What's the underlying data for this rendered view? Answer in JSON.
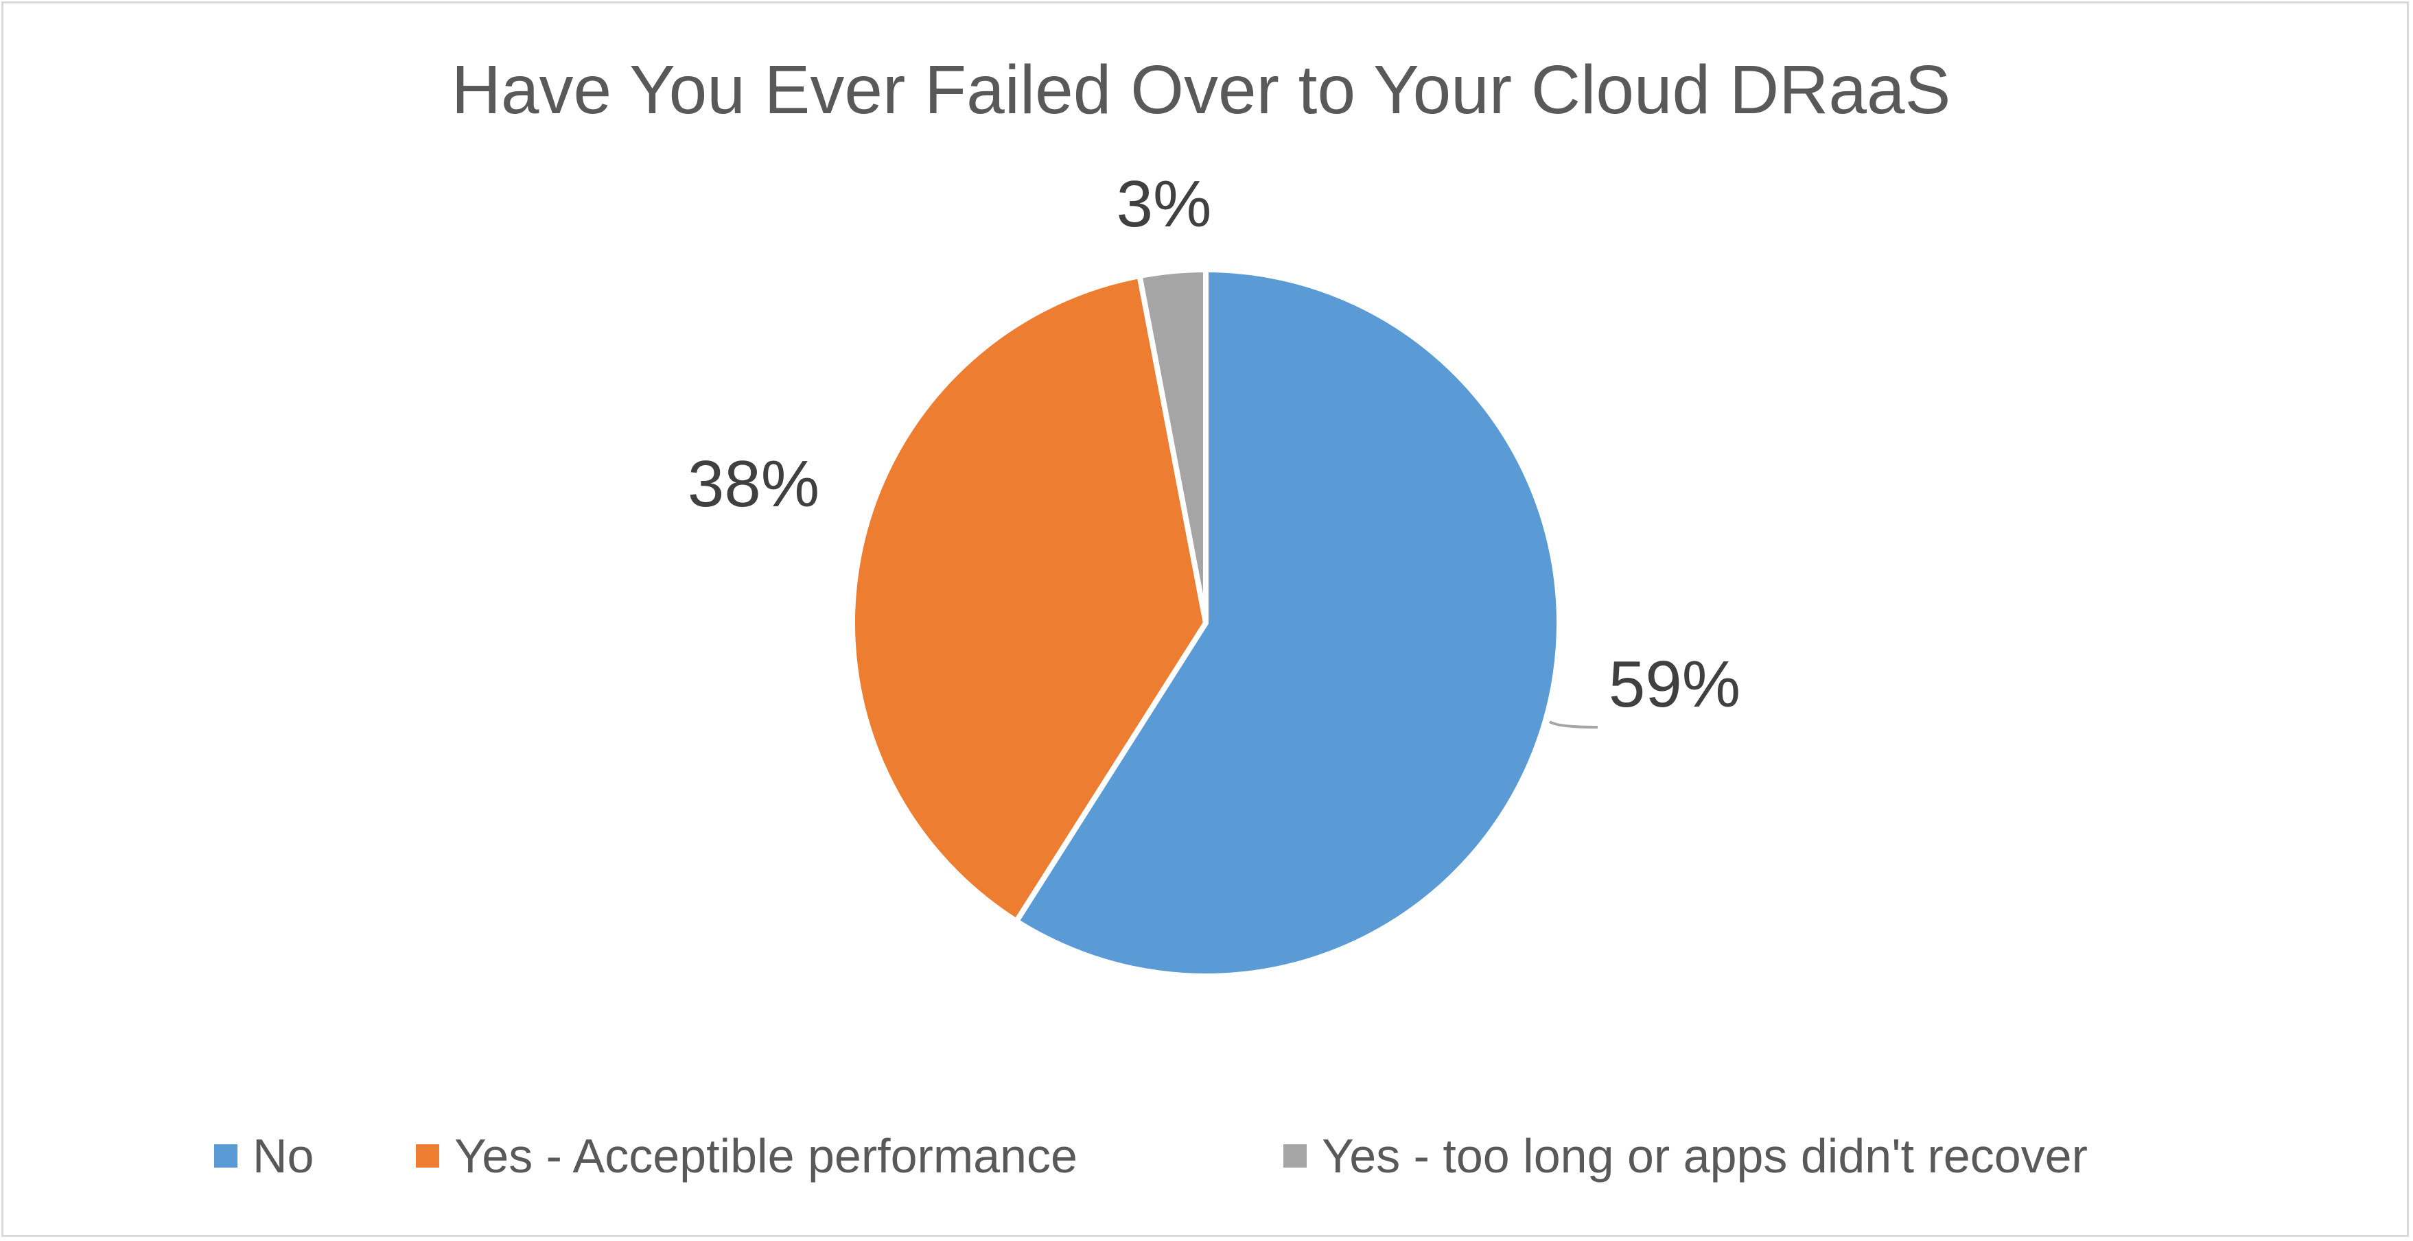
{
  "chart_data": {
    "type": "pie",
    "title": "Have You Ever Failed Over to Your Cloud DRaaS",
    "categories": [
      "No",
      "Yes - Acceptible performance",
      "Yes - too long or apps didn't recover"
    ],
    "values": [
      59,
      38,
      3
    ],
    "data_labels": [
      "59%",
      "38%",
      "3%"
    ],
    "colors": [
      "#5b9bd5",
      "#ed7d31",
      "#a5a5a5"
    ],
    "legend_position": "bottom",
    "start_angle_deg": 0,
    "direction": "clockwise"
  }
}
